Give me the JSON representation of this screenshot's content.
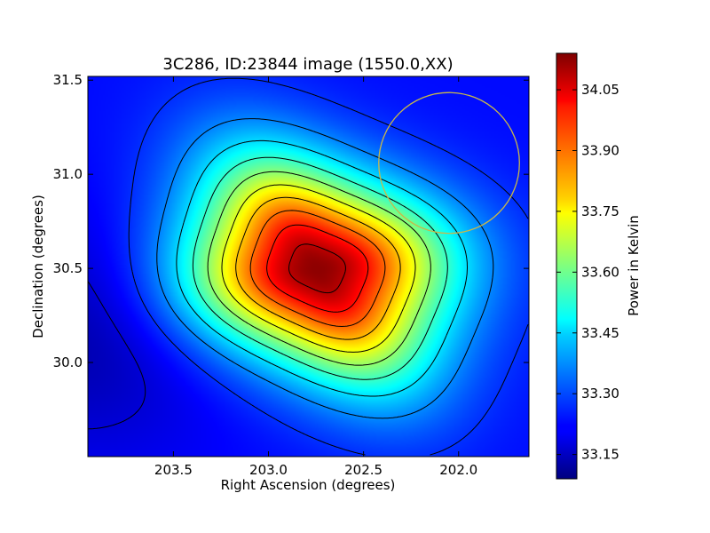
{
  "chart_data": {
    "type": "heatmap",
    "title": "3C286, ID:23844 image (1550.0,XX)",
    "xlabel": "Right Ascension (degrees)",
    "ylabel": "Declination (degrees)",
    "xlim": [
      203.95,
      201.63
    ],
    "ylim": [
      29.5,
      31.52
    ],
    "x_ticks": [
      {
        "value": 203.5,
        "label": "203.5"
      },
      {
        "value": 203.0,
        "label": "203.0"
      },
      {
        "value": 202.5,
        "label": "202.5"
      },
      {
        "value": 202.0,
        "label": "202.0"
      }
    ],
    "y_ticks": [
      {
        "value": 30.0,
        "label": "30.0"
      },
      {
        "value": 30.5,
        "label": "30.5"
      },
      {
        "value": 31.0,
        "label": "31.0"
      },
      {
        "value": 31.5,
        "label": "31.5"
      }
    ],
    "colorbar": {
      "label": "Power in Kelvin",
      "colormap": "jet",
      "range": [
        33.09,
        34.14
      ],
      "ticks": [
        {
          "value": 33.15,
          "label": "33.15"
        },
        {
          "value": 33.3,
          "label": "33.30"
        },
        {
          "value": 33.45,
          "label": "33.45"
        },
        {
          "value": 33.6,
          "label": "33.60"
        },
        {
          "value": 33.75,
          "label": "33.75"
        },
        {
          "value": 33.9,
          "label": "33.90"
        },
        {
          "value": 34.05,
          "label": "34.05"
        }
      ]
    },
    "peak": {
      "ra": 202.75,
      "dec": 30.5,
      "value": 34.13
    },
    "contour_levels": [
      33.18,
      33.27,
      33.36,
      33.45,
      33.54,
      33.63,
      33.72,
      33.81,
      33.9,
      33.99,
      34.08
    ],
    "beam_circle": {
      "ra": 202.05,
      "dec": 31.06,
      "radius_deg": 0.37,
      "color": "#c8b84a"
    },
    "grid": false
  }
}
